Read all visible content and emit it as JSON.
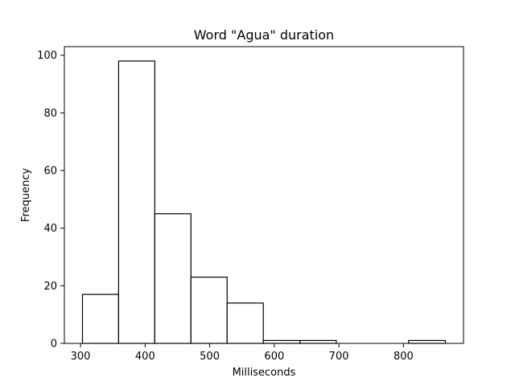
{
  "chart_data": {
    "type": "bar",
    "title": "Word \"Agua\" duration",
    "xlabel": "Milliseconds",
    "ylabel": "Frequency",
    "bins": [
      {
        "start": 303,
        "end": 359,
        "count": 17
      },
      {
        "start": 359,
        "end": 415,
        "count": 98
      },
      {
        "start": 415,
        "end": 471,
        "count": 45
      },
      {
        "start": 471,
        "end": 527,
        "count": 23
      },
      {
        "start": 527,
        "end": 583,
        "count": 14
      },
      {
        "start": 583,
        "end": 640,
        "count": 1
      },
      {
        "start": 640,
        "end": 696,
        "count": 1
      },
      {
        "start": 696,
        "end": 752,
        "count": 0
      },
      {
        "start": 752,
        "end": 808,
        "count": 0
      },
      {
        "start": 808,
        "end": 865,
        "count": 1
      }
    ],
    "xlim": [
      275,
      893
    ],
    "ylim": [
      0,
      103
    ],
    "x_ticks": [
      300,
      400,
      500,
      600,
      700,
      800
    ],
    "y_ticks": [
      0,
      20,
      40,
      60,
      80,
      100
    ],
    "grid": false,
    "bar_fill": "#ffffff",
    "bar_edge": "#000000"
  }
}
